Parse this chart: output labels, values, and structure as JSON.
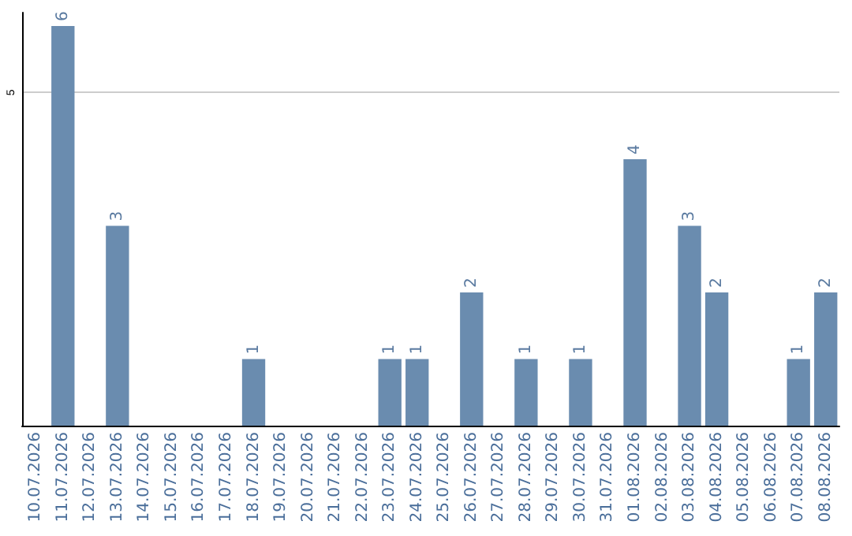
{
  "chart_data": {
    "type": "bar",
    "categories": [
      "10.07.2026",
      "11.07.2026",
      "12.07.2026",
      "13.07.2026",
      "14.07.2026",
      "15.07.2026",
      "16.07.2026",
      "17.07.2026",
      "18.07.2026",
      "19.07.2026",
      "20.07.2026",
      "21.07.2026",
      "22.07.2026",
      "23.07.2026",
      "24.07.2026",
      "25.07.2026",
      "26.07.2026",
      "27.07.2026",
      "28.07.2026",
      "29.07.2026",
      "30.07.2026",
      "31.07.2026",
      "01.08.2026",
      "02.08.2026",
      "03.08.2026",
      "04.08.2026",
      "05.08.2026",
      "06.08.2026",
      "07.08.2026",
      "08.08.2026"
    ],
    "values": [
      0,
      6,
      0,
      3,
      0,
      0,
      0,
      0,
      1,
      0,
      0,
      0,
      0,
      1,
      1,
      0,
      2,
      0,
      1,
      0,
      1,
      0,
      4,
      0,
      3,
      2,
      0,
      0,
      1,
      2
    ],
    "value_labels": [
      null,
      "6",
      null,
      "3",
      null,
      null,
      null,
      null,
      "1",
      null,
      null,
      null,
      null,
      "1",
      "1",
      null,
      "2",
      null,
      "1",
      null,
      "1",
      null,
      "4",
      null,
      "3",
      "2",
      null,
      null,
      "1",
      "2"
    ],
    "color": "#6a8caf",
    "ylim": [
      0,
      6.2
    ],
    "yticks": [
      5
    ],
    "grid": "y"
  }
}
